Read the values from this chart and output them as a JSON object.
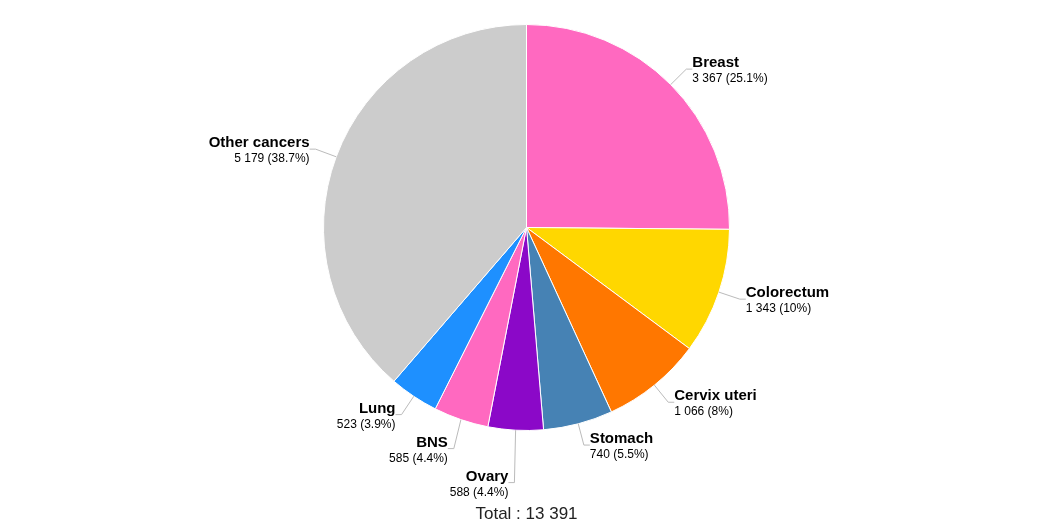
{
  "chart_data": {
    "type": "pie",
    "categories": [
      "Breast",
      "Colorectum",
      "Cervix uteri",
      "Stomach",
      "Ovary",
      "BNS",
      "Lung",
      "Other cancers"
    ],
    "values": [
      3367,
      1343,
      1066,
      740,
      588,
      585,
      523,
      5179
    ],
    "colors": [
      "#ff69c0",
      "#ffd700",
      "#ff7700",
      "#4682b4",
      "#8b08c8",
      "#ff69c0",
      "#1e90ff",
      "#cccccc"
    ],
    "value_labels": [
      "3 367 (25.1%)",
      "1 343 (10%)",
      "1 066 (8%)",
      "740 (5.5%)",
      "588 (4.4%)",
      "585 (4.4%)",
      "523 (3.9%)",
      "5 179 (38.7%)"
    ],
    "annotations": [
      "Total : 13 391"
    ],
    "legend": false
  }
}
